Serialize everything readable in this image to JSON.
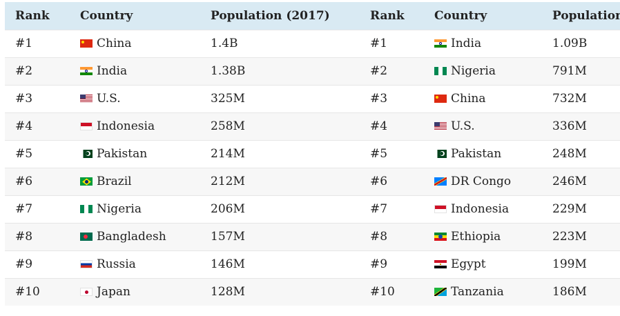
{
  "table": {
    "headers": [
      "Rank",
      "Country",
      "Population (2017)",
      "Rank",
      "Country",
      "Population"
    ],
    "rows": [
      {
        "rank": "#1",
        "country": "China",
        "flag": "china",
        "pop": "1.4B",
        "rank2": "#1",
        "country2": "India",
        "flag2": "india",
        "pop2": "1.09B"
      },
      {
        "rank": "#2",
        "country": "India",
        "flag": "india",
        "pop": "1.38B",
        "rank2": "#2",
        "country2": "Nigeria",
        "flag2": "nigeria",
        "pop2": "791M"
      },
      {
        "rank": "#3",
        "country": "U.S.",
        "flag": "us",
        "pop": "325M",
        "rank2": "#3",
        "country2": "China",
        "flag2": "china",
        "pop2": "732M"
      },
      {
        "rank": "#4",
        "country": "Indonesia",
        "flag": "indonesia",
        "pop": "258M",
        "rank2": "#4",
        "country2": "U.S.",
        "flag2": "us",
        "pop2": "336M"
      },
      {
        "rank": "#5",
        "country": "Pakistan",
        "flag": "pakistan",
        "pop": "214M",
        "rank2": "#5",
        "country2": "Pakistan",
        "flag2": "pakistan",
        "pop2": "248M"
      },
      {
        "rank": "#6",
        "country": "Brazil",
        "flag": "brazil",
        "pop": "212M",
        "rank2": "#6",
        "country2": "DR Congo",
        "flag2": "drcongo",
        "pop2": "246M"
      },
      {
        "rank": "#7",
        "country": "Nigeria",
        "flag": "nigeria",
        "pop": "206M",
        "rank2": "#7",
        "country2": "Indonesia",
        "flag2": "indonesia",
        "pop2": "229M"
      },
      {
        "rank": "#8",
        "country": "Bangladesh",
        "flag": "bangladesh",
        "pop": "157M",
        "rank2": "#8",
        "country2": "Ethiopia",
        "flag2": "ethiopia",
        "pop2": "223M"
      },
      {
        "rank": "#9",
        "country": "Russia",
        "flag": "russia",
        "pop": "146M",
        "rank2": "#9",
        "country2": "Egypt",
        "flag2": "egypt",
        "pop2": "199M"
      },
      {
        "rank": "#10",
        "country": "Japan",
        "flag": "japan",
        "pop": "128M",
        "rank2": "#10",
        "country2": "Tanzania",
        "flag2": "tanzania",
        "pop2": "186M"
      }
    ]
  },
  "colors": {
    "header_bg": "#d9eaf3",
    "stripe_bg": "#f7f7f7",
    "row_border": "#e6e6e6"
  }
}
